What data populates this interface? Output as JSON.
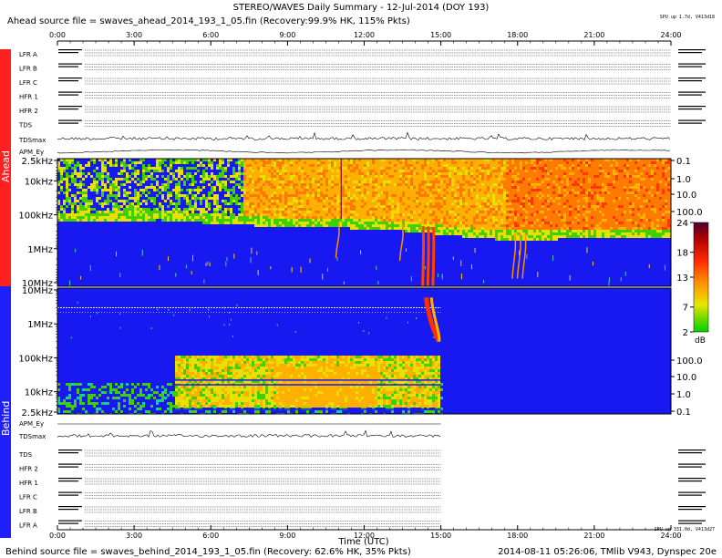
{
  "header": {
    "title": "STEREO/WAVES Daily Summary - 12-Jul-2014 (DOY 193)",
    "ahead_source": "Ahead source file = swaves_ahead_2014_193_1_05.fin (Recovery:99.9% HK, 115% Pkts)",
    "ahead_status": "SPU up 1.7d, V413d18",
    "behind_source": "Behind source file = swaves_behind_2014_193_1_05.fin (Recovery: 62.6% HK, 35% Pkts)",
    "behind_status": "SPU up 331.0d, V413d27",
    "footer_right": "2014-08-11 05:26:06, TMlib V943, Dynspec 20e"
  },
  "sides": {
    "ahead": "Ahead",
    "behind": "Behind"
  },
  "time_axis": {
    "ticks": [
      "0:00",
      "3:00",
      "6:00",
      "9:00",
      "12:00",
      "15:00",
      "18:00",
      "21:00",
      "24:00"
    ],
    "xlabel": "Time (UTC)"
  },
  "ahead_panels": [
    "LFR A",
    "LFR B",
    "LFR C",
    "HFR 1",
    "HFR 2",
    "TDS",
    "TDSmax",
    "APM_Ey"
  ],
  "behind_panels": [
    "APM_Ey",
    "TDSmax",
    "TDS",
    "HFR 2",
    "HFR 1",
    "LFR C",
    "LFR B",
    "LFR A"
  ],
  "colors": {
    "ahead": "#ff2020",
    "behind": "#2020ff",
    "background": "#1818f0"
  },
  "chart_data": {
    "type": "heatmap",
    "freq_axis": {
      "ahead_labels": [
        "2.5kHz",
        "10kHz",
        "100kHz",
        "1MHz",
        "10MHz"
      ],
      "behind_labels": [
        "10MHz",
        "1MHz",
        "100kHz",
        "10kHz",
        "2.5kHz"
      ]
    },
    "right_axis": {
      "ahead_labels": [
        "0.1",
        "1.0",
        "10.0",
        "100.0"
      ],
      "behind_labels": [
        "100.0",
        "10.0",
        "1.0",
        "0.1"
      ]
    },
    "colorbar": {
      "ticks": [
        "24",
        "18",
        "13",
        "7",
        "2"
      ],
      "unit": "dB",
      "range": [
        2,
        24
      ]
    },
    "x_range_hours": [
      0,
      24
    ],
    "behind_data_end_hour": 15.0,
    "ahead_low_freq_edge": [
      {
        "h": 0.0,
        "f": 100
      },
      {
        "h": 4.0,
        "f": 90
      },
      {
        "h": 7.5,
        "f": 130
      },
      {
        "h": 9.0,
        "f": 150
      },
      {
        "h": 12.0,
        "f": 160
      },
      {
        "h": 14.0,
        "f": 200
      },
      {
        "h": 17.5,
        "f": 350
      },
      {
        "h": 21.0,
        "f": 320
      },
      {
        "h": 24.0,
        "f": 300
      }
    ],
    "ahead_bursts_hours": [
      11.0,
      13.5,
      14.3,
      14.5,
      14.7,
      17.9,
      18.1,
      18.3
    ],
    "behind_bursts_hours": [
      14.5,
      14.7
    ],
    "behind_band_range_hours": [
      4.6,
      14.9
    ]
  }
}
